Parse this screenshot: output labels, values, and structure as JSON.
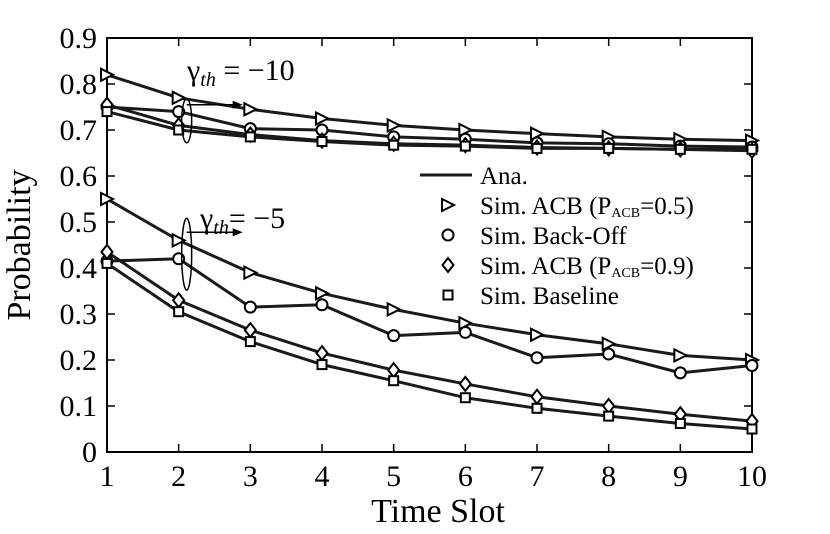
{
  "chart_data": {
    "type": "line",
    "xlabel": "Time Slot",
    "ylabel": "Probability",
    "xlim": [
      1,
      10
    ],
    "ylim": [
      0,
      0.9
    ],
    "x_ticks": [
      1,
      2,
      3,
      4,
      5,
      6,
      7,
      8,
      9,
      10
    ],
    "x_tick_labels": [
      "1",
      "2",
      "3",
      "4",
      "5",
      "6",
      "7",
      "8",
      "9",
      "10"
    ],
    "y_ticks": [
      0,
      0.1,
      0.2,
      0.3,
      0.4,
      0.5,
      0.6,
      0.7,
      0.8,
      0.9
    ],
    "y_tick_labels": [
      "0",
      "0.1",
      "0.2",
      "0.3",
      "0.4",
      "0.5",
      "0.6",
      "0.7",
      "0.8",
      "0.9"
    ],
    "grid": false,
    "legend_position": "middle-right",
    "legend": [
      {
        "kind": "line",
        "text": "Ana."
      },
      {
        "kind": "marker",
        "marker": "triangle-right",
        "text": "Sim. ACB (P",
        "sub": "ACB",
        "suffix": "=0.5)"
      },
      {
        "kind": "marker",
        "marker": "circle",
        "text": "Sim. Back-Off"
      },
      {
        "kind": "marker",
        "marker": "diamond",
        "text": "Sim. ACB (P",
        "sub": "ACB",
        "suffix": "=0.9)"
      },
      {
        "kind": "marker",
        "marker": "square",
        "text": "Sim. Baseline"
      }
    ],
    "annotations": [
      {
        "symbol": "γ",
        "sub": "th",
        "text": " = −10",
        "x": 2.1,
        "y": 0.72
      },
      {
        "symbol": "γ",
        "sub": "th",
        "text": "= −5",
        "x": 2.1,
        "y": 0.43
      }
    ],
    "x": [
      1,
      2,
      3,
      4,
      5,
      6,
      7,
      8,
      9,
      10
    ],
    "series": [
      {
        "name": "Sim. ACB (PACB=0.5)",
        "group": "γth = −10",
        "marker": "triangle-right",
        "values": [
          0.82,
          0.77,
          0.745,
          0.725,
          0.71,
          0.7,
          0.692,
          0.685,
          0.68,
          0.677
        ]
      },
      {
        "name": "Sim. Back-Off",
        "group": "γth = −10",
        "marker": "circle",
        "values": [
          0.75,
          0.74,
          0.703,
          0.7,
          0.685,
          0.68,
          0.672,
          0.67,
          0.665,
          0.663
        ]
      },
      {
        "name": "Sim. ACB (PACB=0.9)",
        "group": "γth = −10",
        "marker": "diamond",
        "values": [
          0.755,
          0.71,
          0.69,
          0.677,
          0.67,
          0.667,
          0.662,
          0.66,
          0.658,
          0.655
        ]
      },
      {
        "name": "Sim. Baseline",
        "group": "γth = −10",
        "marker": "square",
        "values": [
          0.74,
          0.7,
          0.685,
          0.675,
          0.667,
          0.665,
          0.66,
          0.66,
          0.658,
          0.658
        ]
      },
      {
        "name": "Sim. ACB (PACB=0.5)",
        "group": "γth = −5",
        "marker": "triangle-right",
        "values": [
          0.55,
          0.46,
          0.39,
          0.345,
          0.31,
          0.28,
          0.255,
          0.235,
          0.21,
          0.2
        ]
      },
      {
        "name": "Sim. Back-Off",
        "group": "γth = −5",
        "marker": "circle",
        "values": [
          0.415,
          0.42,
          0.315,
          0.32,
          0.253,
          0.26,
          0.205,
          0.213,
          0.172,
          0.188
        ]
      },
      {
        "name": "Sim. ACB (PACB=0.9)",
        "group": "γth = −5",
        "marker": "diamond",
        "values": [
          0.435,
          0.33,
          0.265,
          0.215,
          0.178,
          0.148,
          0.12,
          0.1,
          0.082,
          0.067
        ]
      },
      {
        "name": "Sim. Baseline",
        "group": "γth = −5",
        "marker": "square",
        "values": [
          0.41,
          0.305,
          0.24,
          0.19,
          0.155,
          0.118,
          0.095,
          0.078,
          0.062,
          0.05
        ]
      }
    ]
  }
}
